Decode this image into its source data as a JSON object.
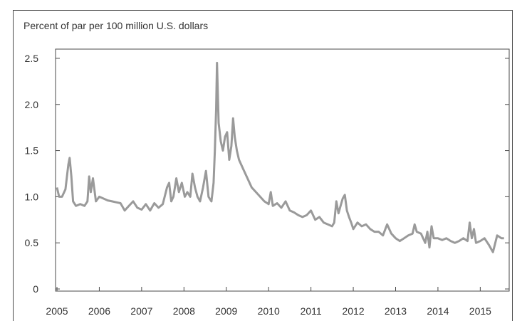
{
  "chart_data": {
    "type": "line",
    "title": "",
    "ylabel": "Percent of par per 100 million U.S. dollars",
    "xlabel": "",
    "xlim": [
      2005,
      2015.65
    ],
    "ylim": [
      0,
      2.6
    ],
    "y_ticks": [
      "0",
      "0.5",
      "1.0",
      "1.5",
      "2.0",
      "2.5"
    ],
    "y_tick_values": [
      0,
      0.5,
      1.0,
      1.5,
      2.0,
      2.5
    ],
    "x_ticks": [
      "2005",
      "2006",
      "2007",
      "2008",
      "2009",
      "2010",
      "2011",
      "2012",
      "2013",
      "2014",
      "2015"
    ],
    "x_tick_values": [
      2005,
      2006,
      2007,
      2008,
      2009,
      2010,
      2011,
      2012,
      2013,
      2014,
      2015
    ],
    "grid": false,
    "line_color": "#9a9a9a",
    "series": [
      {
        "x": [
          2005.0,
          2005.05,
          2005.12,
          2005.2,
          2005.27,
          2005.3,
          2005.34,
          2005.38,
          2005.45,
          2005.55,
          2005.65,
          2005.72,
          2005.76,
          2005.8,
          2005.85,
          2005.92,
          2006.0,
          2006.1,
          2006.2,
          2006.3,
          2006.4,
          2006.5,
          2006.6,
          2006.7,
          2006.8,
          2006.9,
          2007.0,
          2007.1,
          2007.2,
          2007.3,
          2007.4,
          2007.5,
          2007.6,
          2007.65,
          2007.7,
          2007.75,
          2007.82,
          2007.88,
          2007.95,
          2008.02,
          2008.08,
          2008.15,
          2008.2,
          2008.26,
          2008.32,
          2008.38,
          2008.45,
          2008.52,
          2008.58,
          2008.65,
          2008.7,
          2008.73,
          2008.76,
          2008.78,
          2008.82,
          2008.87,
          2008.92,
          2008.97,
          2009.02,
          2009.07,
          2009.12,
          2009.16,
          2009.2,
          2009.25,
          2009.3,
          2009.4,
          2009.5,
          2009.6,
          2009.7,
          2009.8,
          2009.9,
          2010.0,
          2010.05,
          2010.1,
          2010.2,
          2010.3,
          2010.4,
          2010.5,
          2010.6,
          2010.7,
          2010.8,
          2010.9,
          2011.0,
          2011.1,
          2011.2,
          2011.3,
          2011.4,
          2011.5,
          2011.55,
          2011.6,
          2011.65,
          2011.7,
          2011.75,
          2011.8,
          2011.85,
          2011.9,
          2011.95,
          2012.0,
          2012.1,
          2012.2,
          2012.3,
          2012.4,
          2012.5,
          2012.6,
          2012.7,
          2012.8,
          2012.9,
          2013.0,
          2013.1,
          2013.2,
          2013.3,
          2013.4,
          2013.45,
          2013.5,
          2013.6,
          2013.7,
          2013.75,
          2013.8,
          2013.85,
          2013.9,
          2014.0,
          2014.1,
          2014.2,
          2014.3,
          2014.4,
          2014.5,
          2014.6,
          2014.7,
          2014.75,
          2014.8,
          2014.85,
          2014.9,
          2015.0,
          2015.1,
          2015.2,
          2015.3,
          2015.4,
          2015.5,
          2015.56
        ],
        "y": [
          1.1,
          1.0,
          1.0,
          1.08,
          1.35,
          1.42,
          1.22,
          0.95,
          0.9,
          0.92,
          0.9,
          0.95,
          1.22,
          1.05,
          1.2,
          0.95,
          1.0,
          0.98,
          0.96,
          0.95,
          0.94,
          0.93,
          0.85,
          0.9,
          0.95,
          0.88,
          0.86,
          0.92,
          0.85,
          0.93,
          0.88,
          0.92,
          1.1,
          1.15,
          0.95,
          1.0,
          1.2,
          1.05,
          1.15,
          1.0,
          1.05,
          1.0,
          1.25,
          1.1,
          1.0,
          0.95,
          1.1,
          1.28,
          1.0,
          0.95,
          1.15,
          1.5,
          1.95,
          2.45,
          1.8,
          1.6,
          1.5,
          1.65,
          1.7,
          1.4,
          1.55,
          1.85,
          1.65,
          1.5,
          1.4,
          1.3,
          1.2,
          1.1,
          1.05,
          1.0,
          0.95,
          0.92,
          1.05,
          0.9,
          0.93,
          0.88,
          0.95,
          0.85,
          0.83,
          0.8,
          0.78,
          0.8,
          0.85,
          0.75,
          0.78,
          0.72,
          0.7,
          0.68,
          0.72,
          0.95,
          0.82,
          0.9,
          0.98,
          1.02,
          0.85,
          0.78,
          0.72,
          0.65,
          0.72,
          0.68,
          0.7,
          0.65,
          0.62,
          0.62,
          0.58,
          0.7,
          0.6,
          0.55,
          0.52,
          0.55,
          0.58,
          0.6,
          0.7,
          0.62,
          0.6,
          0.5,
          0.62,
          0.45,
          0.68,
          0.55,
          0.55,
          0.53,
          0.55,
          0.52,
          0.5,
          0.52,
          0.55,
          0.52,
          0.72,
          0.55,
          0.65,
          0.5,
          0.52,
          0.55,
          0.48,
          0.4,
          0.58,
          0.55,
          0.55
        ]
      }
    ]
  }
}
